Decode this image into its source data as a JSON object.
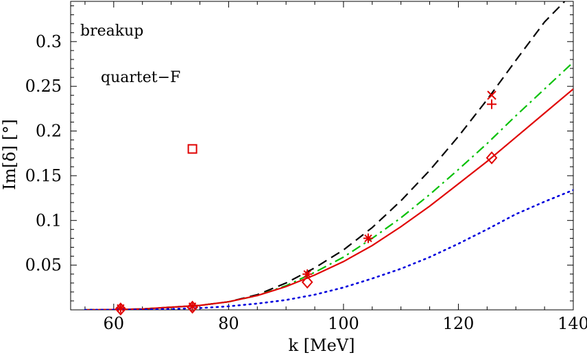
{
  "chart_data": {
    "type": "line",
    "title": "",
    "xlabel": "k [MeV]",
    "ylabel": "Im[δ] [°]",
    "xlim": [
      52.5,
      140
    ],
    "ylim": [
      0,
      0.345
    ],
    "xticks": [
      60,
      80,
      100,
      120,
      140
    ],
    "xtick_labels": [
      "60",
      "80",
      "100",
      "120",
      "140"
    ],
    "yticks": [
      0.05,
      0.1,
      0.15,
      0.2,
      0.25,
      0.3
    ],
    "ytick_labels": [
      "0.05",
      "0.1",
      "0.15",
      "0.2",
      "0.25",
      "0.3"
    ],
    "grid": false,
    "annotations": [
      "breakup",
      "quartet−F"
    ],
    "series": [
      {
        "name": "black dashed",
        "style": "dashed",
        "color": "#000000",
        "x": [
          55,
          60,
          65,
          70,
          75,
          80,
          85,
          90,
          95,
          100,
          105,
          110,
          115,
          120,
          125,
          130,
          135,
          138.5
        ],
        "y": [
          0,
          0.0003,
          0.001,
          0.003,
          0.005,
          0.009,
          0.017,
          0.03,
          0.047,
          0.067,
          0.092,
          0.122,
          0.156,
          0.194,
          0.235,
          0.279,
          0.322,
          0.345
        ]
      },
      {
        "name": "green dash-dot",
        "style": "dashdot",
        "color": "#00c000",
        "x": [
          55,
          60,
          65,
          70,
          75,
          80,
          85,
          90,
          95,
          100,
          105,
          110,
          115,
          120,
          125,
          130,
          135,
          140
        ],
        "y": [
          0,
          0.0003,
          0.001,
          0.003,
          0.005,
          0.009,
          0.016,
          0.027,
          0.042,
          0.059,
          0.08,
          0.103,
          0.129,
          0.157,
          0.186,
          0.217,
          0.247,
          0.277
        ]
      },
      {
        "name": "red solid",
        "style": "solid",
        "color": "#e00000",
        "x": [
          55,
          60,
          65,
          70,
          75,
          80,
          85,
          90,
          95,
          100,
          105,
          110,
          115,
          120,
          125,
          130,
          135,
          140
        ],
        "y": [
          0,
          0.0003,
          0.001,
          0.003,
          0.005,
          0.009,
          0.016,
          0.026,
          0.039,
          0.054,
          0.072,
          0.093,
          0.116,
          0.141,
          0.166,
          0.193,
          0.22,
          0.247
        ]
      },
      {
        "name": "blue dotted",
        "style": "dotted",
        "color": "#0000dd",
        "x": [
          55,
          60,
          65,
          70,
          75,
          80,
          85,
          90,
          95,
          100,
          105,
          110,
          115,
          120,
          125,
          130,
          135,
          140
        ],
        "y": [
          0,
          0.0001,
          0.0004,
          0.001,
          0.002,
          0.004,
          0.007,
          0.011,
          0.017,
          0.025,
          0.035,
          0.046,
          0.059,
          0.074,
          0.09,
          0.107,
          0.121,
          0.134
        ]
      }
    ],
    "markers": [
      {
        "shape": "square",
        "x": 73.7,
        "y": 0.18
      },
      {
        "shape": "diamond",
        "x": 61.2,
        "y": 0.001
      },
      {
        "shape": "diamond",
        "x": 73.7,
        "y": 0.003
      },
      {
        "shape": "diamond",
        "x": 93.7,
        "y": 0.031
      },
      {
        "shape": "diamond",
        "x": 125.8,
        "y": 0.17
      },
      {
        "shape": "star",
        "x": 61.2,
        "y": 0.002
      },
      {
        "shape": "star",
        "x": 73.7,
        "y": 0.004
      },
      {
        "shape": "star",
        "x": 93.7,
        "y": 0.04
      },
      {
        "shape": "star",
        "x": 104.3,
        "y": 0.08
      },
      {
        "shape": "cross",
        "x": 125.8,
        "y": 0.24
      },
      {
        "shape": "plus",
        "x": 125.8,
        "y": 0.23
      }
    ]
  }
}
